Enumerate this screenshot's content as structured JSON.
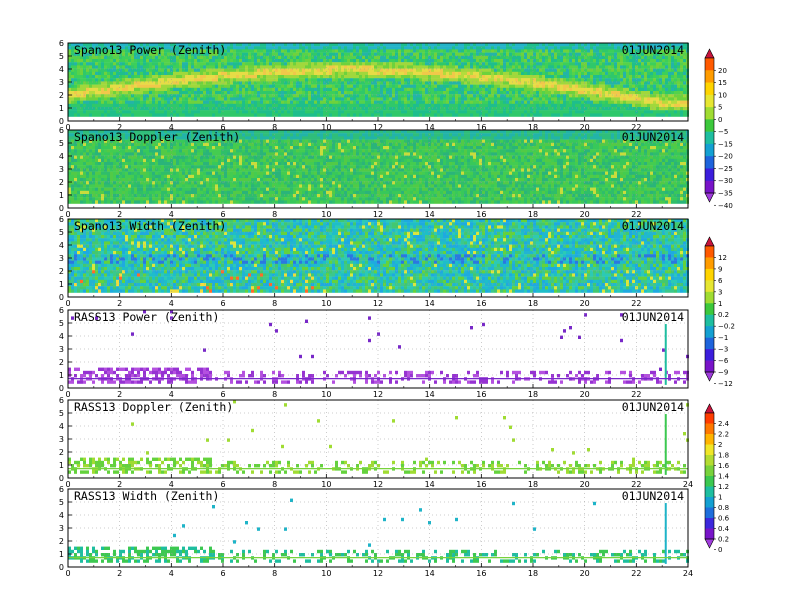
{
  "figure": {
    "date_label": "01JUN2014"
  },
  "chart_data": [
    {
      "type": "heatmap",
      "title": "Spano13 Power (Zenith)",
      "xlim": [
        0,
        24
      ],
      "ylim": [
        0,
        6
      ],
      "x_ticks": [
        "0",
        "2",
        "4",
        "6",
        "8",
        "10",
        "12",
        "14",
        "16",
        "18",
        "20",
        "22"
      ],
      "y_ticks": [
        "0",
        "1",
        "2",
        "3",
        "4",
        "5",
        "6"
      ],
      "grid": true,
      "colorbar": "A",
      "pattern": "power"
    },
    {
      "type": "heatmap",
      "title": "Spano13 Doppler (Zenith)",
      "xlim": [
        0,
        24
      ],
      "ylim": [
        0,
        6
      ],
      "x_ticks": [
        "0",
        "2",
        "4",
        "6",
        "8",
        "10",
        "12",
        "14",
        "16",
        "18",
        "20",
        "22"
      ],
      "y_ticks": [
        "0",
        "1",
        "2",
        "3",
        "4",
        "5",
        "6"
      ],
      "grid": true,
      "colorbar": "A",
      "pattern": "doppler"
    },
    {
      "type": "heatmap",
      "title": "Spano13 Width (Zenith)",
      "xlim": [
        0,
        24
      ],
      "ylim": [
        0,
        6
      ],
      "x_ticks": [
        "0",
        "2",
        "4",
        "6",
        "8",
        "10",
        "12",
        "14",
        "16",
        "18",
        "20",
        "22"
      ],
      "y_ticks": [
        "0",
        "1",
        "2",
        "3",
        "4",
        "5",
        "6"
      ],
      "grid": true,
      "colorbar": "B",
      "pattern": "width"
    },
    {
      "type": "heatmap",
      "title": "RASS13 Power (Zenith)",
      "xlim": [
        0,
        24
      ],
      "ylim": [
        0,
        6
      ],
      "x_ticks": [
        "0",
        "2",
        "4",
        "6",
        "8",
        "10",
        "12",
        "14",
        "16",
        "18",
        "20",
        "22"
      ],
      "y_ticks": [
        "0",
        "1",
        "2",
        "3",
        "4",
        "5",
        "6"
      ],
      "grid": true,
      "colorbar": "B",
      "pattern": "rass_power"
    },
    {
      "type": "heatmap",
      "title": "RASS13 Doppler (Zenith)",
      "xlim": [
        0,
        24
      ],
      "ylim": [
        0,
        6
      ],
      "x_ticks": [
        "0",
        "2",
        "4",
        "6",
        "8",
        "10",
        "12",
        "14",
        "16",
        "18",
        "20",
        "22",
        "24"
      ],
      "y_ticks": [
        "0",
        "1",
        "2",
        "3",
        "4",
        "5",
        "6"
      ],
      "grid": true,
      "colorbar": "C",
      "pattern": "rass_doppler"
    },
    {
      "type": "heatmap",
      "title": "RASS13 Width (Zenith)",
      "xlim": [
        0,
        24
      ],
      "ylim": [
        0,
        6
      ],
      "x_ticks": [
        "0",
        "2",
        "4",
        "6",
        "8",
        "10",
        "12",
        "14",
        "16",
        "18",
        "20",
        "22",
        "24"
      ],
      "y_ticks": [
        "0",
        "1",
        "2",
        "3",
        "4",
        "5",
        "6"
      ],
      "grid": true,
      "colorbar": "C",
      "pattern": "rass_width"
    }
  ],
  "colorbars": {
    "A": {
      "labels": [
        "20",
        "15",
        "10",
        "5",
        "0",
        "−5",
        "−15",
        "−20",
        "−25",
        "−30",
        "−35",
        "−40"
      ],
      "colors": [
        "#c8143c",
        "#ff5a00",
        "#ff9c00",
        "#ffd400",
        "#e6e632",
        "#a0dc32",
        "#3cc83c",
        "#1ebea0",
        "#14a0d2",
        "#1e64dc",
        "#3c1edc",
        "#7814c8",
        "#a03cdc"
      ]
    },
    "B": {
      "labels": [
        "12",
        "9",
        "6",
        "3",
        "1",
        "0.2",
        "−0.2",
        "−1",
        "−3",
        "−6",
        "−9",
        "−12"
      ],
      "colors": [
        "#c8143c",
        "#ff5a00",
        "#ff9c00",
        "#ffd400",
        "#e6e632",
        "#a0dc32",
        "#3cc83c",
        "#1ebea0",
        "#14a0d2",
        "#1e64dc",
        "#3c1edc",
        "#7814c8",
        "#a03cdc"
      ]
    },
    "C": {
      "labels": [
        "2.4",
        "2.2",
        "2",
        "1.8",
        "1.6",
        "1.4",
        "1.2",
        "1",
        "0.8",
        "0.6",
        "0.4",
        "0.2",
        "0"
      ],
      "colors": [
        "#c8143c",
        "#ff3c00",
        "#ff7800",
        "#ffb400",
        "#f0e628",
        "#b4dc32",
        "#78d23c",
        "#3cc850",
        "#1ebea0",
        "#14a0d2",
        "#1e6edc",
        "#3c28dc",
        "#7814c8",
        "#a03cdc"
      ]
    }
  }
}
